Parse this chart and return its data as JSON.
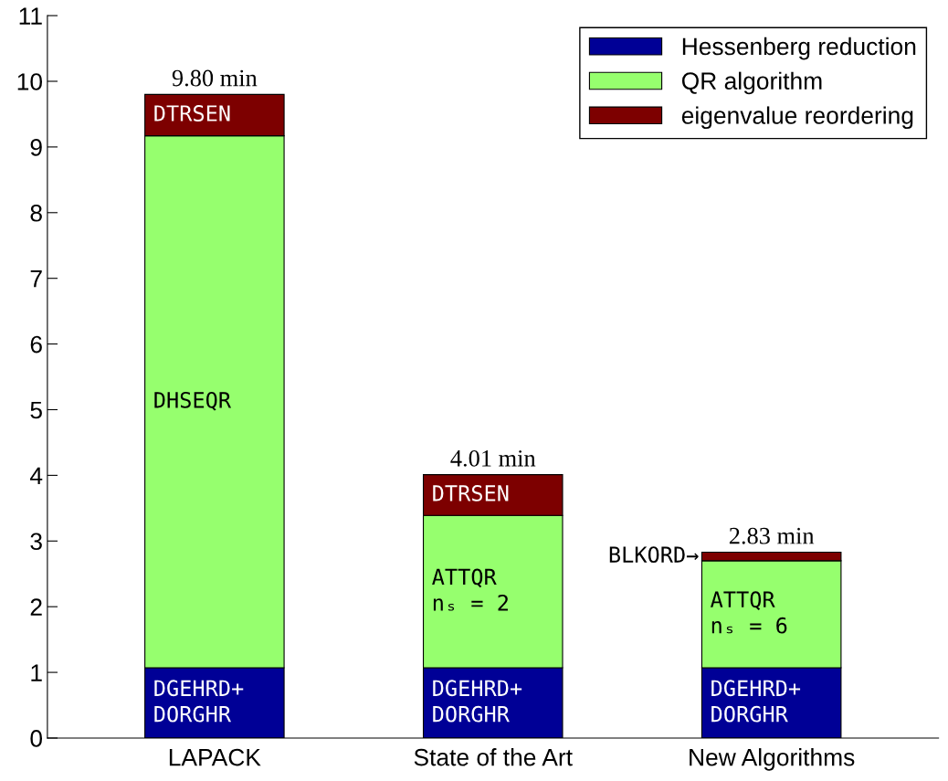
{
  "chart_data": {
    "type": "bar",
    "stacked": true,
    "categories": [
      "LAPACK",
      "State of the Art",
      "New Algorithms"
    ],
    "series": [
      {
        "name": "Hessenberg reduction",
        "color": "#000096",
        "values": [
          1.07,
          1.07,
          1.07
        ]
      },
      {
        "name": "QR algorithm",
        "color": "#96ff6e",
        "values": [
          8.1,
          2.32,
          1.63
        ]
      },
      {
        "name": "eigenvalue reordering",
        "color": "#7d0000",
        "values": [
          0.63,
          0.62,
          0.13
        ]
      }
    ],
    "totals": [
      "9.80 min",
      "4.01 min",
      "2.83 min"
    ],
    "ylim": [
      0,
      11
    ],
    "yticks": [
      0,
      1,
      2,
      3,
      4,
      5,
      6,
      7,
      8,
      9,
      10,
      11
    ],
    "legend": "top right",
    "grid": false,
    "annotations": [
      "DGEHRD+\nDORGHR",
      "DGEHRD+\nDORGHR",
      "DGEHRD+\nDORGHR",
      "DHSEQR",
      "ATTQR\nnₛ = 2",
      "ATTQR\nnₛ = 6",
      "DTRSEN",
      "DTRSEN",
      "BLKORD→"
    ]
  }
}
